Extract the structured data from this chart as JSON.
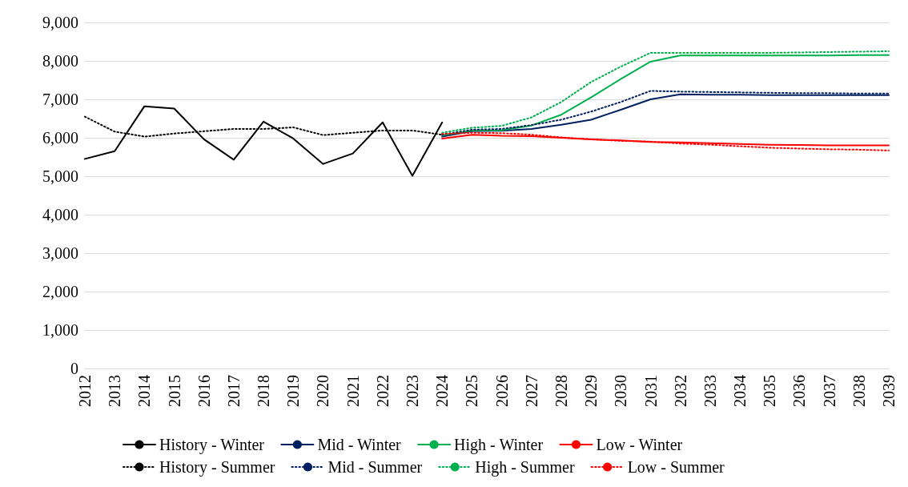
{
  "chart_data": {
    "type": "line",
    "categories": [
      "2012",
      "2013",
      "2014",
      "2015",
      "2016",
      "2017",
      "2018",
      "2019",
      "2020",
      "2021",
      "2022",
      "2023",
      "2024",
      "2025",
      "2026",
      "2027",
      "2028",
      "2029",
      "2030",
      "2031",
      "2032",
      "2033",
      "2034",
      "2035",
      "2036",
      "2037",
      "2038",
      "2039"
    ],
    "series": [
      {
        "name": "History - Winter",
        "color": "#000000",
        "line_style": "solid",
        "values": [
          5450,
          5650,
          6820,
          6760,
          5960,
          5430,
          6420,
          5980,
          5320,
          5590,
          6400,
          5010,
          6400,
          null,
          null,
          null,
          null,
          null,
          null,
          null,
          null,
          null,
          null,
          null,
          null,
          null,
          null,
          null
        ]
      },
      {
        "name": "Mid - Winter",
        "color": "#002060",
        "line_style": "solid",
        "values": [
          null,
          null,
          null,
          null,
          null,
          null,
          null,
          null,
          null,
          null,
          null,
          null,
          6030,
          6170,
          6180,
          6230,
          6340,
          6470,
          6730,
          7000,
          7130,
          7120,
          7120,
          7110,
          7110,
          7110,
          7110,
          7110
        ]
      },
      {
        "name": "High - Winter",
        "color": "#00b050",
        "line_style": "solid",
        "values": [
          null,
          null,
          null,
          null,
          null,
          null,
          null,
          null,
          null,
          null,
          null,
          null,
          6060,
          6190,
          6200,
          6320,
          6600,
          7050,
          7530,
          7980,
          8140,
          8140,
          8140,
          8140,
          8140,
          8140,
          8150,
          8150
        ]
      },
      {
        "name": "Low - Winter",
        "color": "#ff0000",
        "line_style": "solid",
        "values": [
          null,
          null,
          null,
          null,
          null,
          null,
          null,
          null,
          null,
          null,
          null,
          null,
          5980,
          6080,
          6050,
          6040,
          6000,
          5960,
          5930,
          5890,
          5880,
          5860,
          5840,
          5820,
          5810,
          5800,
          5800,
          5800
        ]
      },
      {
        "name": "History - Summer",
        "color": "#000000",
        "line_style": "dotted",
        "values": [
          6550,
          6160,
          6030,
          6110,
          6170,
          6230,
          6230,
          6270,
          6070,
          6130,
          6190,
          6190,
          6080,
          null,
          null,
          null,
          null,
          null,
          null,
          null,
          null,
          null,
          null,
          null,
          null,
          null,
          null,
          null
        ]
      },
      {
        "name": "Mid - Summer",
        "color": "#002060",
        "line_style": "dotted",
        "values": [
          null,
          null,
          null,
          null,
          null,
          null,
          null,
          null,
          null,
          null,
          null,
          null,
          6080,
          6210,
          6230,
          6330,
          6470,
          6680,
          6930,
          7220,
          7200,
          7190,
          7180,
          7170,
          7160,
          7160,
          7150,
          7150
        ]
      },
      {
        "name": "High - Summer",
        "color": "#00b050",
        "line_style": "dotted",
        "values": [
          null,
          null,
          null,
          null,
          null,
          null,
          null,
          null,
          null,
          null,
          null,
          null,
          6130,
          6260,
          6310,
          6530,
          6930,
          7450,
          7850,
          8210,
          8210,
          8210,
          8210,
          8210,
          8220,
          8230,
          8240,
          8250
        ]
      },
      {
        "name": "Low - Summer",
        "color": "#ff0000",
        "line_style": "dotted",
        "values": [
          null,
          null,
          null,
          null,
          null,
          null,
          null,
          null,
          null,
          null,
          null,
          null,
          6100,
          6130,
          6120,
          6080,
          6010,
          5960,
          5920,
          5900,
          5850,
          5820,
          5780,
          5740,
          5720,
          5700,
          5690,
          5670
        ]
      }
    ],
    "ylim": [
      0,
      9000
    ],
    "yticks": [
      0,
      {
        "value": 1000,
        "label": "1,000"
      },
      {
        "value": 2000,
        "label": "2,000"
      },
      {
        "value": 3000,
        "label": "3,000"
      },
      {
        "value": 4000,
        "label": "4,000"
      },
      {
        "value": 5000,
        "label": "5,000"
      },
      {
        "value": 6000,
        "label": "6,000"
      },
      {
        "value": 7000,
        "label": "7,000"
      },
      {
        "value": 8000,
        "label": "8,000"
      },
      {
        "value": 9000,
        "label": "9,000"
      }
    ],
    "grid": "y",
    "legend": "bottom",
    "marker": "none"
  }
}
